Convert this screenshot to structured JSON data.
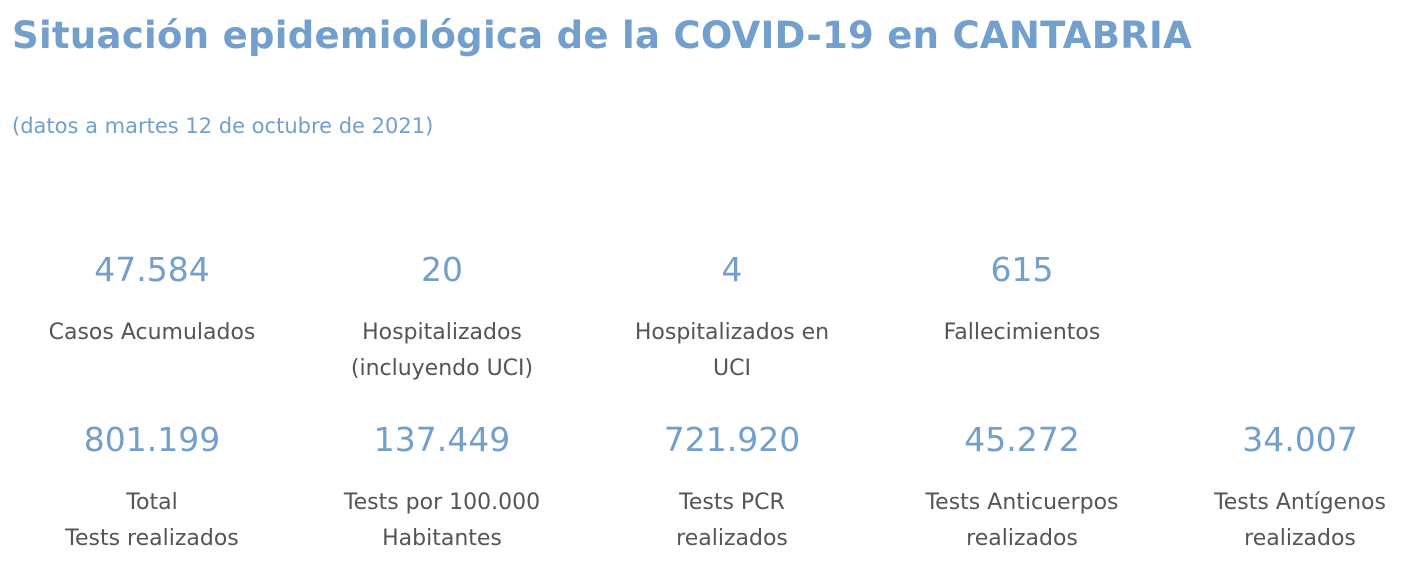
{
  "header": {
    "title": "Situación epidemiológica de la COVID-19 en CANTABRIA",
    "subtitle": "(datos a martes 12 de octubre de 2021)"
  },
  "row_1": [
    {
      "value": "47.584",
      "label_line1": "Casos Acumulados",
      "label_line2": ""
    },
    {
      "value": "20",
      "label_line1": "Hospitalizados",
      "label_line2": "(incluyendo UCI)"
    },
    {
      "value": "4",
      "label_line1": "Hospitalizados en",
      "label_line2": "UCI"
    },
    {
      "value": "615",
      "label_line1": "Fallecimientos",
      "label_line2": ""
    }
  ],
  "row_2": [
    {
      "value": "801.199",
      "label_line1": "Total",
      "label_line2": "Tests realizados"
    },
    {
      "value": "137.449",
      "label_line1": "Tests por 100.000",
      "label_line2": "Habitantes"
    },
    {
      "value": "721.920",
      "label_line1": "Tests PCR",
      "label_line2": "realizados"
    },
    {
      "value": "45.272",
      "label_line1": "Tests Anticuerpos",
      "label_line2": "realizados"
    },
    {
      "value": "34.007",
      "label_line1": "Tests Antígenos",
      "label_line2": "realizados"
    }
  ],
  "colors": {
    "accent": "#729fcb",
    "label_text": "#555555",
    "background": "#ffffff"
  }
}
